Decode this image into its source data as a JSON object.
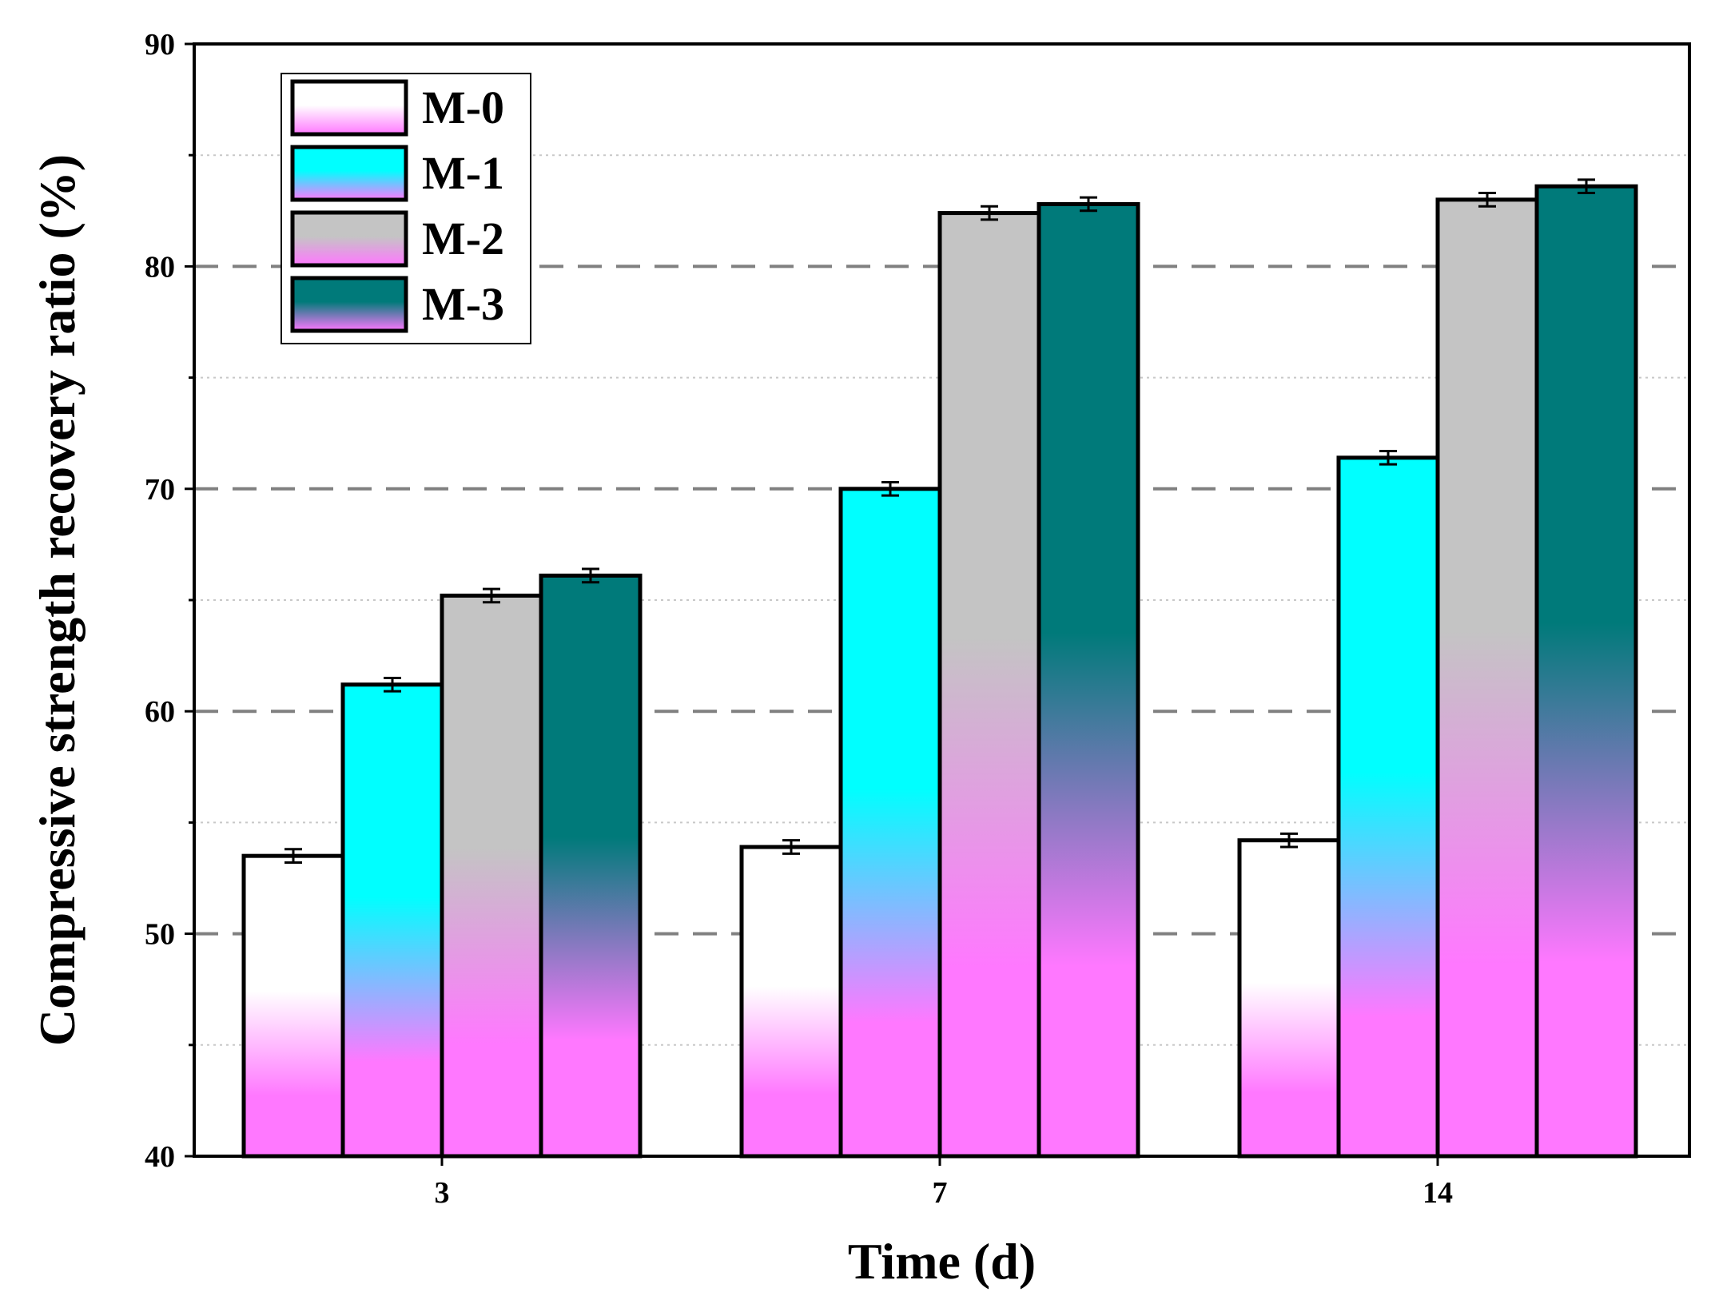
{
  "chart_data": {
    "type": "bar",
    "title": "",
    "xlabel": "Time (d)",
    "ylabel": "Compressive strength recovery ratio (%)",
    "categories": [
      "3",
      "7",
      "14"
    ],
    "ylim": [
      40,
      90
    ],
    "yticks": [
      40,
      50,
      60,
      70,
      80,
      90
    ],
    "major_dashed_gridlines": [
      50,
      60,
      70,
      80
    ],
    "minor_dotted_gridlines": [
      45,
      55,
      65,
      75,
      85
    ],
    "legend_position": "top-left",
    "series": [
      {
        "name": "M-0",
        "values": [
          53.5,
          53.9,
          54.2
        ],
        "errors": [
          0.3,
          0.3,
          0.3
        ],
        "top_color": "#ffffff",
        "bottom_color": "#ff78ff"
      },
      {
        "name": "M-1",
        "values": [
          61.2,
          70.0,
          71.4
        ],
        "errors": [
          0.3,
          0.3,
          0.3
        ],
        "top_color": "#00ffff",
        "bottom_color": "#ff78ff"
      },
      {
        "name": "M-2",
        "values": [
          65.2,
          82.4,
          83.0
        ],
        "errors": [
          0.3,
          0.3,
          0.3
        ],
        "top_color": "#c4c4c4",
        "bottom_color": "#ff78ff"
      },
      {
        "name": "M-3",
        "values": [
          66.1,
          82.8,
          83.6
        ],
        "errors": [
          0.3,
          0.3,
          0.3
        ],
        "top_color": "#007a7a",
        "bottom_color": "#ff78ff"
      }
    ]
  }
}
